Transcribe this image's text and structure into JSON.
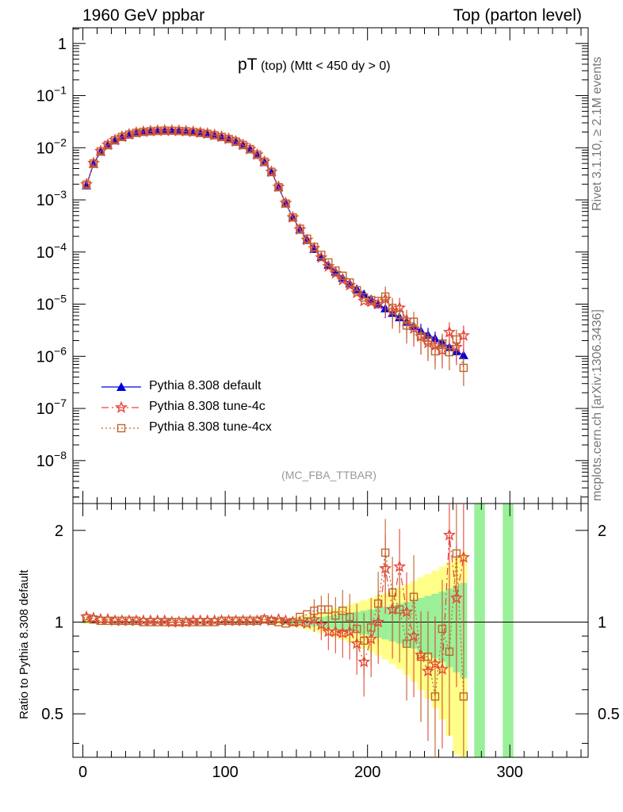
{
  "header": {
    "left": "1960 GeV ppbar",
    "right": "Top (parton level)"
  },
  "plot_title": {
    "main": "pT",
    "sub1": "(top)",
    "sub2": "(Mtt < 450 dy > 0)"
  },
  "side_text": {
    "top": "Rivet 3.1.10, ≥ 2.1M events",
    "bottom": "mcplots.cern.ch [arXiv:1306.3436]"
  },
  "analysis_label": "(MC_FBA_TTBAR)",
  "ratio_ylabel": "Ratio to Pythia 8.308 default",
  "legend": [
    {
      "label": "Pythia 8.308 default",
      "color": "#0000dd",
      "marker": "filled-triangle",
      "line": "solid"
    },
    {
      "label": "Pythia 8.308 tune-4c",
      "color": "#e8443c",
      "marker": "open-star",
      "line": "dash-dot"
    },
    {
      "label": "Pythia 8.308 tune-4cx",
      "color": "#c0642d",
      "marker": "open-square",
      "line": "dotted"
    }
  ],
  "chart_data": [
    {
      "type": "line",
      "panel": "main",
      "yscale": "log",
      "xlim": [
        -7,
        355
      ],
      "ylim": [
        1.5e-09,
        2.0
      ],
      "y_tick_labels": [
        "1",
        "10^-1",
        "10^-2",
        "10^-3",
        "10^-4",
        "10^-5",
        "10^-6",
        "10^-7",
        "10^-8"
      ],
      "x": [
        2.5,
        7.5,
        12.5,
        17.5,
        22.5,
        27.5,
        32.5,
        37.5,
        42.5,
        47.5,
        52.5,
        57.5,
        62.5,
        67.5,
        72.5,
        77.5,
        82.5,
        87.5,
        92.5,
        97.5,
        102.5,
        107.5,
        112.5,
        117.5,
        122.5,
        127.5,
        132.5,
        137.5,
        142.5,
        147.5,
        152.5,
        157.5,
        162.5,
        167.5,
        172.5,
        177.5,
        182.5,
        187.5,
        192.5,
        197.5,
        202.5,
        207.5,
        212.5,
        217.5,
        222.5,
        227.5,
        232.5,
        237.5,
        242.5,
        247.5,
        252.5,
        257.5,
        262.5,
        267.5
      ],
      "series": [
        {
          "name": "Pythia 8.308 default",
          "values": [
            0.0019,
            0.0049,
            0.0084,
            0.0112,
            0.0138,
            0.016,
            0.0178,
            0.0192,
            0.02,
            0.0206,
            0.021,
            0.0212,
            0.0212,
            0.021,
            0.0206,
            0.02,
            0.0192,
            0.0184,
            0.0173,
            0.016,
            0.0146,
            0.013,
            0.0112,
            0.0093,
            0.0073,
            0.0053,
            0.0034,
            0.00175,
            0.00086,
            0.00046,
            0.00027,
            0.00017,
            0.000115,
            8e-05,
            5.7e-05,
            4.2e-05,
            3.2e-05,
            2.5e-05,
            1.95e-05,
            1.55e-05,
            1.25e-05,
            1e-05,
            8.3e-06,
            6.8e-06,
            5.6e-06,
            4.6e-06,
            3.8e-06,
            3.1e-06,
            2.6e-06,
            2.2e-06,
            1.85e-06,
            1.5e-06,
            1.25e-06,
            1.05e-06
          ]
        },
        {
          "name": "Pythia 8.308 tune-4c",
          "values": [
            0.00198,
            0.00505,
            0.0086,
            0.0114,
            0.014,
            0.0162,
            0.018,
            0.0194,
            0.0202,
            0.0208,
            0.0212,
            0.0214,
            0.0213,
            0.0211,
            0.0207,
            0.0202,
            0.0194,
            0.0186,
            0.0175,
            0.0162,
            0.0148,
            0.0132,
            0.0113,
            0.0094,
            0.0074,
            0.0054,
            0.00345,
            0.00178,
            0.00087,
            0.00046,
            0.00027,
            0.00017,
            0.000118,
            7.8e-05,
            5.3e-05,
            3.9e-05,
            2.9e-05,
            2.3e-05,
            1.65e-05,
            1.15e-05,
            1.1e-05,
            1e-05,
            1.25e-05,
            7.5e-06,
            8.5e-06,
            5e-06,
            3.4e-06,
            2.4e-06,
            1.8e-06,
            1.6e-06,
            1.3e-06,
            2.9e-06,
            1.5e-06,
            2.5e-06
          ]
        },
        {
          "name": "Pythia 8.308 tune-4cx",
          "values": [
            0.00196,
            0.005,
            0.0085,
            0.0113,
            0.0139,
            0.0161,
            0.0179,
            0.0193,
            0.0201,
            0.0207,
            0.0211,
            0.0213,
            0.0212,
            0.021,
            0.0207,
            0.0201,
            0.0193,
            0.0185,
            0.0174,
            0.0161,
            0.0147,
            0.0131,
            0.0113,
            0.0094,
            0.0074,
            0.0054,
            0.00345,
            0.00175,
            0.00085,
            0.00046,
            0.00028,
            0.00018,
            0.000125,
            8.8e-05,
            6.3e-05,
            4.4e-05,
            3.5e-05,
            2.6e-05,
            1.85e-05,
            1.35e-05,
            1.2e-05,
            1.15e-05,
            1.4e-05,
            8.5e-06,
            6.2e-06,
            3.9e-06,
            4.6e-06,
            2.4e-06,
            2e-06,
            1.25e-06,
            1.75e-06,
            1.2e-06,
            2.1e-06,
            6e-07
          ]
        }
      ]
    },
    {
      "type": "line",
      "panel": "ratio",
      "xlim": [
        -7,
        355
      ],
      "ylim": [
        0.36,
        2.45
      ],
      "y_tick_labels": [
        "2",
        "1",
        "0.5"
      ],
      "x_tick_labels": [
        "0",
        "100",
        "200",
        "300"
      ],
      "ylabel": "Ratio to Pythia 8.308 default",
      "x": [
        2.5,
        7.5,
        12.5,
        17.5,
        22.5,
        27.5,
        32.5,
        37.5,
        42.5,
        47.5,
        52.5,
        57.5,
        62.5,
        67.5,
        72.5,
        77.5,
        82.5,
        87.5,
        92.5,
        97.5,
        102.5,
        107.5,
        112.5,
        117.5,
        122.5,
        127.5,
        132.5,
        137.5,
        142.5,
        147.5,
        152.5,
        157.5,
        162.5,
        167.5,
        172.5,
        177.5,
        182.5,
        187.5,
        192.5,
        197.5,
        202.5,
        207.5,
        212.5,
        217.5,
        222.5,
        227.5,
        232.5,
        237.5,
        242.5,
        247.5,
        252.5,
        257.5,
        262.5,
        267.5
      ],
      "series": [
        {
          "name": "Pythia 8.308 tune-4c",
          "values": [
            1.04,
            1.03,
            1.02,
            1.02,
            1.01,
            1.01,
            1.01,
            1.01,
            1.01,
            1.01,
            1.01,
            1.01,
            1.0,
            1.0,
            1.0,
            1.01,
            1.01,
            1.01,
            1.01,
            1.01,
            1.01,
            1.01,
            1.01,
            1.01,
            1.01,
            1.02,
            1.01,
            1.02,
            1.01,
            1.0,
            1.0,
            0.99,
            1.02,
            0.98,
            0.93,
            0.93,
            0.92,
            0.93,
            0.85,
            0.74,
            0.88,
            1.0,
            1.5,
            1.1,
            1.52,
            1.08,
            0.9,
            0.78,
            0.69,
            0.73,
            0.7,
            1.93,
            1.2,
            1.63
          ]
        },
        {
          "name": "Pythia 8.308 tune-4cx",
          "values": [
            1.03,
            1.02,
            1.01,
            1.01,
            1.01,
            1.01,
            1.01,
            1.01,
            1.0,
            1.0,
            1.0,
            1.0,
            1.0,
            1.0,
            1.0,
            1.0,
            1.0,
            1.0,
            1.0,
            1.01,
            1.01,
            1.01,
            1.01,
            1.01,
            1.01,
            1.02,
            1.01,
            1.0,
            0.99,
            1.0,
            1.04,
            1.06,
            1.09,
            1.1,
            1.1,
            1.05,
            1.09,
            1.04,
            0.95,
            0.87,
            0.96,
            1.15,
            1.69,
            1.25,
            1.1,
            0.85,
            1.21,
            0.77,
            0.77,
            0.57,
            0.95,
            0.8,
            1.68,
            0.57
          ]
        }
      ]
    }
  ]
}
